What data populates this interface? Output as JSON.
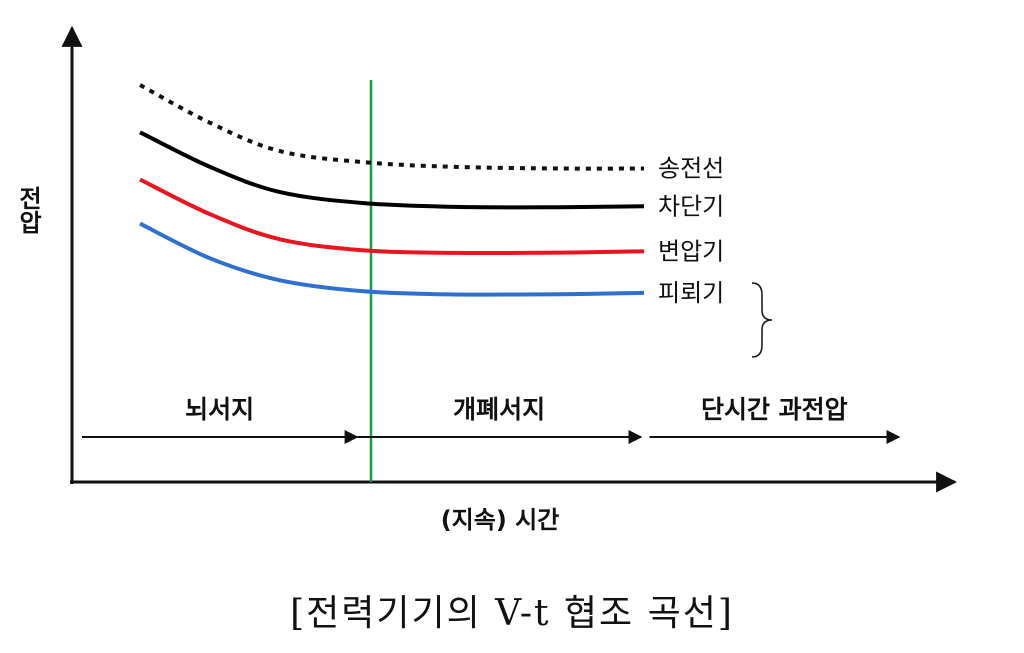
{
  "chart_data": {
    "type": "line",
    "title": "",
    "xlabel": "(지속) 시간",
    "ylabel": "전압",
    "series": [
      {
        "name": "송전선",
        "color": "#111111",
        "style": "dotted",
        "points": [
          [
            0,
            1.0
          ],
          [
            0.1,
            0.88
          ],
          [
            0.2,
            0.79
          ],
          [
            0.32,
            0.755
          ],
          [
            0.45,
            0.74
          ],
          [
            0.6,
            0.735
          ],
          [
            0.72,
            0.735
          ]
        ]
      },
      {
        "name": "차단기",
        "color": "#000000",
        "style": "solid",
        "points": [
          [
            0,
            0.85
          ],
          [
            0.1,
            0.74
          ],
          [
            0.2,
            0.66
          ],
          [
            0.32,
            0.625
          ],
          [
            0.45,
            0.613
          ],
          [
            0.6,
            0.612
          ],
          [
            0.72,
            0.615
          ]
        ]
      },
      {
        "name": "변압기",
        "color": "#e8141e",
        "style": "solid",
        "points": [
          [
            0,
            0.7
          ],
          [
            0.1,
            0.59
          ],
          [
            0.2,
            0.51
          ],
          [
            0.32,
            0.475
          ],
          [
            0.45,
            0.467
          ],
          [
            0.6,
            0.468
          ],
          [
            0.72,
            0.472
          ]
        ]
      },
      {
        "name": "피뢰기",
        "color": "#2f6fd0",
        "style": "solid",
        "points": [
          [
            0,
            0.56
          ],
          [
            0.1,
            0.45
          ],
          [
            0.2,
            0.38
          ],
          [
            0.32,
            0.345
          ],
          [
            0.45,
            0.335
          ],
          [
            0.6,
            0.336
          ],
          [
            0.72,
            0.34
          ]
        ]
      }
    ],
    "phases": [
      {
        "label": "뇌서지",
        "x_start": 0.0,
        "x_end": 0.32
      },
      {
        "label": "개폐서지",
        "x_start": 0.32,
        "x_end": 0.65
      },
      {
        "label": "단시간 과전압",
        "x_start": 0.66,
        "x_end": 0.95
      }
    ],
    "divider": {
      "x": 0.33,
      "color": "#1a9a4a"
    },
    "brace_groups": [
      [
        "변압기",
        "피뢰기"
      ]
    ]
  },
  "caption": "[전력기기의 V-t 협조 곡선]"
}
